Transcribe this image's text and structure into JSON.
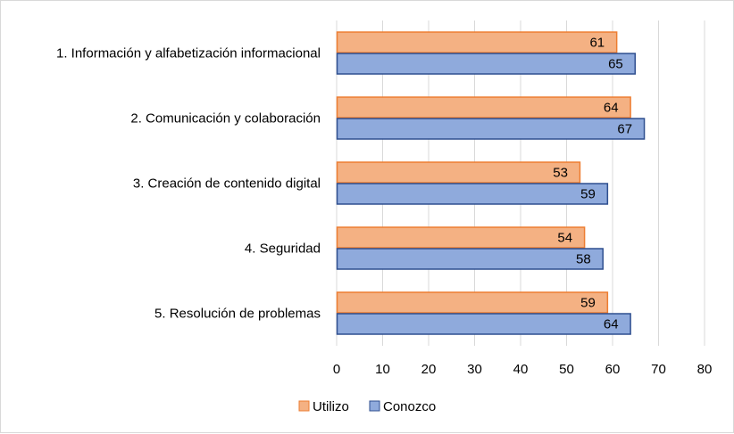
{
  "chart_data": {
    "type": "bar",
    "orientation": "horizontal",
    "categories": [
      "1. Información y alfabetización informacional",
      "2. Comunicación y colaboración",
      "3. Creación de contenido digital",
      "4. Seguridad",
      "5. Resolución de problemas"
    ],
    "series": [
      {
        "name": "Utilizo",
        "values": [
          61,
          64,
          53,
          54,
          59
        ],
        "color": "#f4b183",
        "stroke": "#ed7d31"
      },
      {
        "name": "Conozco",
        "values": [
          65,
          67,
          59,
          58,
          64
        ],
        "color": "#8faadc",
        "stroke": "#2f4f8f"
      }
    ],
    "xlim": [
      0,
      80
    ],
    "xticks": [
      0,
      10,
      20,
      30,
      40,
      50,
      60,
      70,
      80
    ],
    "grid": true,
    "legend": "bottom",
    "data_labels": true
  }
}
